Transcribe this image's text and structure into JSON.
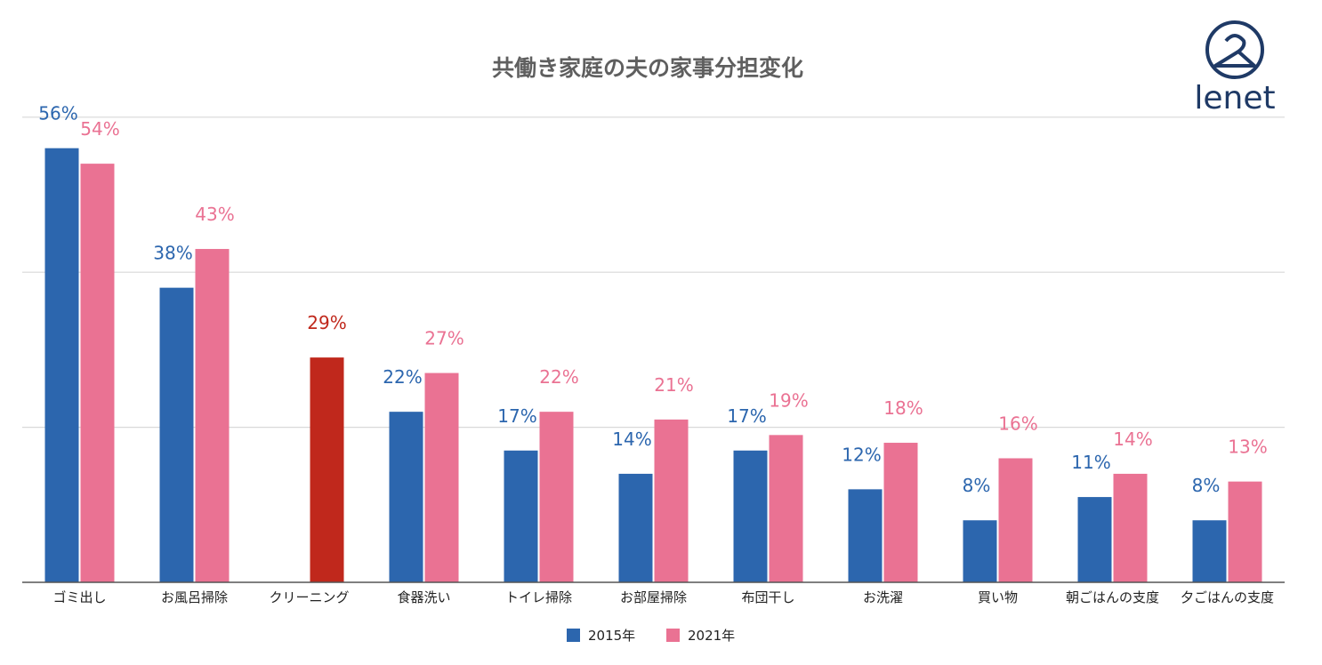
{
  "logo": {
    "text": "lenet"
  },
  "chart_data": {
    "type": "bar",
    "title": "共働き家庭の夫の家事分担変化",
    "xlabel": "",
    "ylabel": "",
    "ylim": [
      0,
      60
    ],
    "grid": true,
    "legend_position": "bottom",
    "categories": [
      "ゴミ出し",
      "お風呂掃除",
      "クリーニング",
      "食器洗い",
      "トイレ掃除",
      "お部屋掃除",
      "布団干し",
      "お洗濯",
      "買い物",
      "朝ごはんの支度",
      "夕ごはんの支度"
    ],
    "series": [
      {
        "name": "2015年",
        "color": "#2c66ae",
        "values": [
          56,
          38,
          null,
          22,
          17,
          14,
          17,
          12,
          8,
          11,
          8
        ],
        "labels": [
          "56%",
          "38%",
          "",
          "22%",
          "17%",
          "14%",
          "17%",
          "12%",
          "8%",
          "11%",
          "8%"
        ]
      },
      {
        "name": "2021年",
        "color": "#ea7293",
        "values": [
          54,
          43,
          29,
          27,
          22,
          21,
          19,
          18,
          16,
          14,
          13
        ],
        "labels": [
          "54%",
          "43%",
          "29%",
          "27%",
          "22%",
          "21%",
          "19%",
          "18%",
          "16%",
          "14%",
          "13%"
        ]
      }
    ],
    "highlight": {
      "category": "クリーニング",
      "color": "#c0281c"
    }
  }
}
